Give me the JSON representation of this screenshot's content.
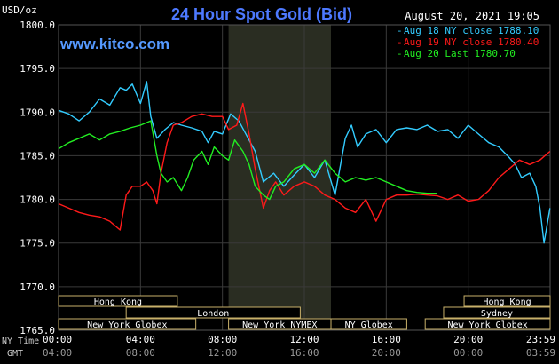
{
  "chart_data": {
    "type": "line",
    "title": "24 Hour Spot Gold (Bid)",
    "site": "www.kitco.com",
    "timestamp": "August 20, 2021 19:05",
    "ylabel": "USD/oz",
    "ylim": [
      1765,
      1800
    ],
    "yticks": [
      "1765.0",
      "1770.0",
      "1775.0",
      "1780.0",
      "1785.0",
      "1790.0",
      "1795.0",
      "1800.0"
    ],
    "xlim": [
      0,
      24
    ],
    "x_row_labels": {
      "ny": "NY Time",
      "gmt": "GMT"
    },
    "x_ticks_ny": [
      "00:00",
      "04:00",
      "08:00",
      "12:00",
      "16:00",
      "20:00",
      "23:59"
    ],
    "x_ticks_gmt": [
      "04:00",
      "08:00",
      "12:00",
      "16:00",
      "20:00",
      "00:00",
      "03:59"
    ],
    "colors": {
      "aug18": "#33ccff",
      "aug19": "#ff1a1a",
      "aug20": "#22ee22",
      "grid": "#3a3a3a",
      "shade": "#2a2d22",
      "title": "#4d79ff"
    },
    "grid": true,
    "legend_position": "top-right",
    "shaded_hours": [
      8.3,
      13.3
    ],
    "sessions": [
      {
        "label": "Hong Kong",
        "start": 0,
        "end": 5.8,
        "row": 0
      },
      {
        "label": "London",
        "start": 3.3,
        "end": 11.8,
        "row": 1
      },
      {
        "label": "New York Globex",
        "start": 0,
        "end": 6.7,
        "row": 2
      },
      {
        "label": "New York NYMEX",
        "start": 8.3,
        "end": 13.3,
        "row": 2
      },
      {
        "label": "NY Globex",
        "start": 13.3,
        "end": 17.0,
        "row": 2
      },
      {
        "label": "Hong Kong",
        "start": 19.8,
        "end": 24,
        "row": 0
      },
      {
        "label": "Sydney",
        "start": 18.8,
        "end": 24,
        "row": 1
      },
      {
        "label": "New York Globex",
        "start": 17.9,
        "end": 24,
        "row": 2
      }
    ],
    "series": [
      {
        "name": "Aug 18 NY close 1788.10",
        "color": "#33ccff",
        "x": [
          0,
          0.5,
          1,
          1.5,
          2,
          2.5,
          3,
          3.3,
          3.6,
          4.0,
          4.3,
          4.5,
          4.8,
          5.2,
          5.6,
          6.0,
          6.5,
          7.0,
          7.3,
          7.6,
          8.0,
          8.4,
          8.8,
          9.3,
          9.6,
          10.0,
          10.5,
          11.0,
          11.5,
          12.0,
          12.5,
          13.0,
          13.5,
          14.0,
          14.3,
          14.6,
          15.0,
          15.5,
          16.0,
          16.5,
          17.0,
          17.5,
          18.0,
          18.5,
          19.0,
          19.5,
          20.0,
          20.5,
          21.0,
          21.5,
          22.0,
          22.3,
          22.6,
          23.0,
          23.3,
          23.5,
          23.7,
          23.99
        ],
        "y": [
          1790.2,
          1789.8,
          1789.0,
          1790.0,
          1791.5,
          1790.8,
          1792.8,
          1792.5,
          1793.2,
          1791.0,
          1793.5,
          1789.5,
          1787.0,
          1788.0,
          1788.8,
          1788.5,
          1788.2,
          1787.8,
          1786.5,
          1787.8,
          1787.5,
          1789.8,
          1789.0,
          1786.8,
          1785.5,
          1782.0,
          1783.0,
          1781.5,
          1782.8,
          1784.0,
          1782.5,
          1784.5,
          1780.5,
          1787.0,
          1788.5,
          1786.0,
          1787.5,
          1788.0,
          1786.5,
          1788.0,
          1788.2,
          1788.0,
          1788.5,
          1787.8,
          1788.0,
          1787.0,
          1788.5,
          1787.5,
          1786.5,
          1786.0,
          1784.8,
          1784.0,
          1782.5,
          1783.0,
          1781.5,
          1779.0,
          1775.0,
          1779.0
        ]
      },
      {
        "name": "Aug 19 NY close 1780.40",
        "color": "#ff1a1a",
        "x": [
          0,
          0.5,
          1,
          1.5,
          2,
          2.5,
          3,
          3.3,
          3.6,
          4.0,
          4.3,
          4.6,
          4.8,
          5.0,
          5.3,
          5.6,
          6.0,
          6.5,
          7.0,
          7.5,
          8.0,
          8.3,
          8.7,
          9.0,
          9.3,
          9.6,
          10.0,
          10.3,
          10.6,
          11.0,
          11.5,
          12.0,
          12.5,
          13.0,
          13.5,
          14.0,
          14.5,
          15.0,
          15.5,
          16.0,
          16.5,
          17.0,
          17.5,
          18.0,
          18.5,
          19.0,
          19.5,
          20.0,
          20.5,
          21.0,
          21.5,
          22.0,
          22.5,
          23.0,
          23.5,
          23.99
        ],
        "y": [
          1779.5,
          1779.0,
          1778.5,
          1778.2,
          1778.0,
          1777.5,
          1776.5,
          1780.5,
          1781.5,
          1781.5,
          1782.0,
          1781.0,
          1779.5,
          1783.0,
          1786.5,
          1788.5,
          1788.8,
          1789.5,
          1789.8,
          1789.5,
          1789.5,
          1788.0,
          1788.5,
          1791.0,
          1787.5,
          1783.5,
          1779.0,
          1781.0,
          1782.0,
          1780.5,
          1781.5,
          1782.0,
          1781.5,
          1780.5,
          1780.0,
          1779.0,
          1778.5,
          1780.0,
          1777.5,
          1780.0,
          1780.5,
          1780.5,
          1780.6,
          1780.5,
          1780.4,
          1780.0,
          1780.5,
          1779.8,
          1780.0,
          1781.0,
          1782.5,
          1783.5,
          1784.5,
          1784.0,
          1784.5,
          1785.5
        ]
      },
      {
        "name": "Aug 20 Last 1780.70",
        "color": "#22ee22",
        "x": [
          0,
          0.5,
          1,
          1.5,
          2,
          2.5,
          3,
          3.5,
          4.0,
          4.5,
          4.8,
          5.0,
          5.3,
          5.6,
          6.0,
          6.3,
          6.6,
          7.0,
          7.3,
          7.6,
          8.0,
          8.3,
          8.6,
          9.0,
          9.3,
          9.6,
          10.0,
          10.3,
          10.6,
          11.0,
          11.5,
          12.0,
          12.5,
          13.0,
          13.5,
          14.0,
          14.5,
          15.0,
          15.5,
          16.0,
          16.5,
          17.0,
          17.5,
          18.0,
          18.5
        ],
        "y": [
          1785.8,
          1786.5,
          1787.0,
          1787.5,
          1786.8,
          1787.5,
          1787.8,
          1788.2,
          1788.5,
          1789.0,
          1785.0,
          1783.0,
          1782.0,
          1782.5,
          1781.0,
          1782.5,
          1784.5,
          1785.5,
          1784.0,
          1786.0,
          1785.0,
          1784.5,
          1786.8,
          1785.5,
          1784.0,
          1781.5,
          1780.5,
          1780.0,
          1781.5,
          1782.0,
          1783.5,
          1784.0,
          1783.0,
          1784.5,
          1783.0,
          1782.0,
          1782.5,
          1782.2,
          1782.5,
          1782.0,
          1781.5,
          1781.0,
          1780.8,
          1780.7,
          1780.7
        ]
      }
    ]
  }
}
